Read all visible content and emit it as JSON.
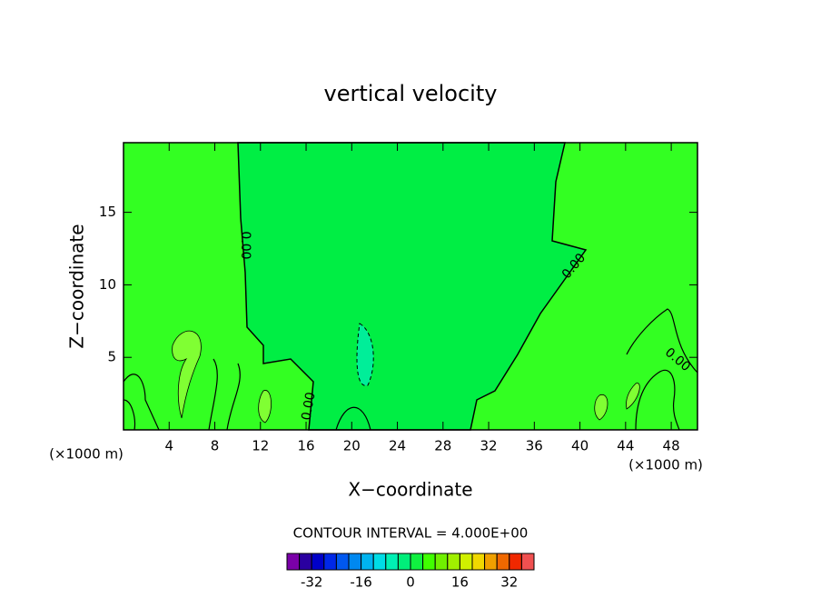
{
  "chart_data": {
    "type": "contour",
    "title": "vertical velocity",
    "x_label": "X−coordinate",
    "y_label": "Z−coordinate",
    "unit_label": "(×1000 m)",
    "xlim": [
      0,
      50.3
    ],
    "xticks": [
      4,
      8,
      12,
      16,
      20,
      24,
      28,
      32,
      36,
      40,
      44,
      48
    ],
    "ylim": [
      0,
      19.8
    ],
    "yticks": [
      5,
      10,
      15
    ],
    "contour_labels": [
      "0.00",
      "0.00",
      "0.00",
      "0.00"
    ],
    "interval_label": "CONTOUR INTERVAL = 4.000E+00",
    "colorbar": {
      "levels": [
        -40,
        -36,
        -32,
        -28,
        -24,
        -20,
        -16,
        -12,
        -8,
        -4,
        0,
        4,
        8,
        12,
        16,
        20,
        24,
        28,
        32,
        36,
        40
      ],
      "colors": [
        "#7a00a8",
        "#2a00a0",
        "#0000c8",
        "#0028e8",
        "#0058f0",
        "#0088f0",
        "#00b4f0",
        "#00dce6",
        "#00f0b4",
        "#00ee7a",
        "#10f040",
        "#40ff00",
        "#70f000",
        "#a0f000",
        "#d0f000",
        "#f0d800",
        "#f0a000",
        "#f06800",
        "#f02800",
        "#f05050",
        "#f09090"
      ],
      "ticks": [
        -32,
        -16,
        0,
        16,
        32
      ]
    }
  }
}
